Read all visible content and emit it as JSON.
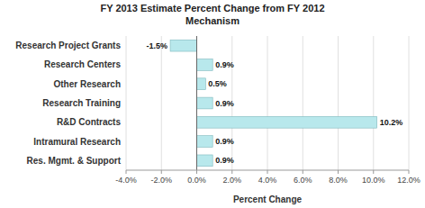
{
  "chart_data": {
    "type": "bar",
    "orientation": "horizontal",
    "title": "FY 2013 Estimate Percent Change from FY 2012",
    "subtitle": "Mechanism",
    "categories": [
      "Research Project Grants",
      "Research Centers",
      "Other Research",
      "Research Training",
      "R&D Contracts",
      "Intramural Research",
      "Res. Mgmt. & Support"
    ],
    "values": [
      -1.5,
      0.9,
      0.5,
      0.9,
      10.2,
      0.9,
      0.9
    ],
    "value_labels": [
      "-1.5%",
      "0.9%",
      "0.5%",
      "0.9%",
      "10.2%",
      "0.9%",
      "0.9%"
    ],
    "data_labels": true,
    "color": "#b8e8ec",
    "xlabel": "Percent Change",
    "xlim": [
      -4.0,
      12.0
    ],
    "xticks": [
      {
        "value": -4.0,
        "label": "-4.0%"
      },
      {
        "value": -2.0,
        "label": "-2.0%"
      },
      {
        "value": 0.0,
        "label": "0.0%"
      },
      {
        "value": 2.0,
        "label": "2.0%"
      },
      {
        "value": 4.0,
        "label": "4.0%"
      },
      {
        "value": 6.0,
        "label": "6.0%"
      },
      {
        "value": 8.0,
        "label": "8.0%"
      },
      {
        "value": 10.0,
        "label": "10.0%"
      },
      {
        "value": 12.0,
        "label": "12.0%"
      }
    ],
    "grid": true
  }
}
